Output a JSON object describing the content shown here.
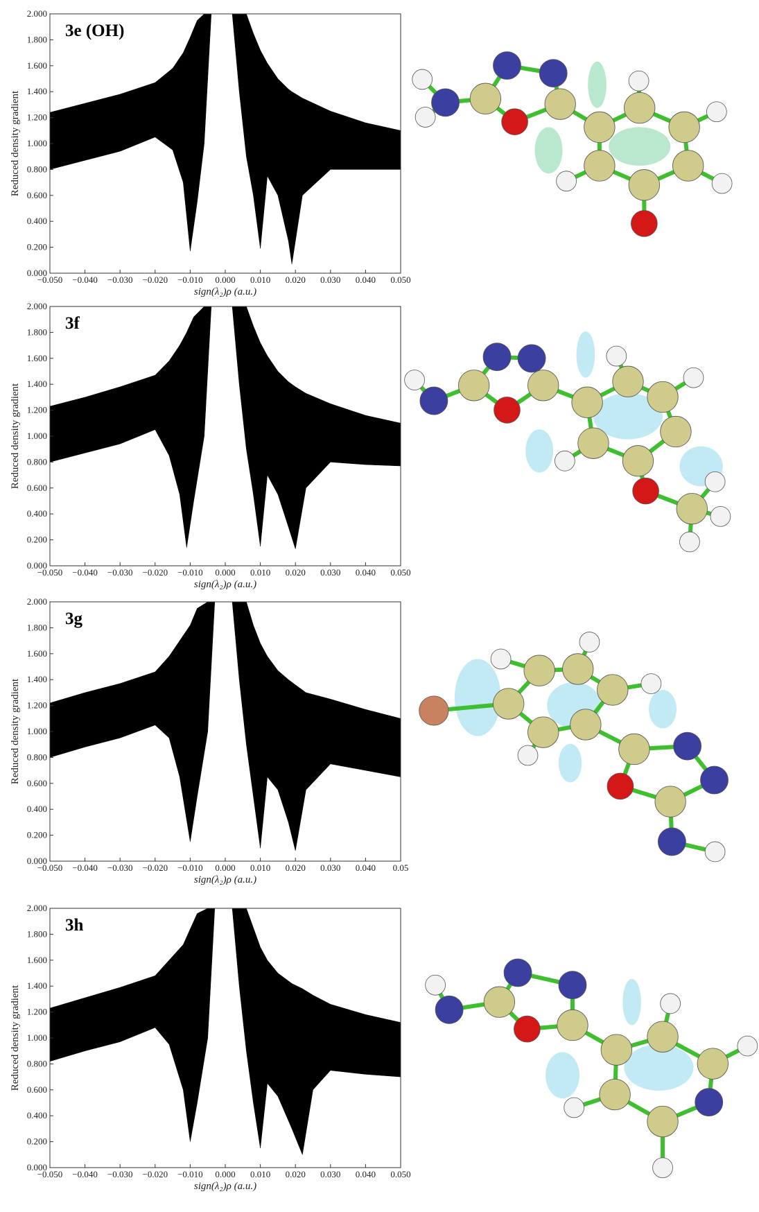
{
  "chart_data": [
    {
      "type": "area",
      "title": "3e (OH)",
      "xlabel": "sign(λ₂)ρ (a.u.)",
      "ylabel": "Reduced density gradient",
      "color": "#000000",
      "xlim": [
        -0.05,
        0.05
      ],
      "ylim": [
        0,
        2
      ],
      "xticks": [
        {
          "value": -0.05,
          "label": "−0.050"
        },
        {
          "value": -0.04,
          "label": "−0.040"
        },
        {
          "value": -0.03,
          "label": "−0.030"
        },
        {
          "value": -0.02,
          "label": "−0.020"
        },
        {
          "value": -0.01,
          "label": "−0.010"
        },
        {
          "value": 0,
          "label": "0.000"
        },
        {
          "value": 0.01,
          "label": "0.010"
        },
        {
          "value": 0.02,
          "label": "0.020"
        },
        {
          "value": 0.03,
          "label": "0.030"
        },
        {
          "value": 0.04,
          "label": "0.040"
        },
        {
          "value": 0.05,
          "label": "0.050"
        }
      ],
      "yticks": [
        {
          "value": 0,
          "label": "0.000"
        },
        {
          "value": 0.2,
          "label": "0.200"
        },
        {
          "value": 0.4,
          "label": "0.400"
        },
        {
          "value": 0.6,
          "label": "0.600"
        },
        {
          "value": 0.8,
          "label": "0.800"
        },
        {
          "value": 1,
          "label": "1.000"
        },
        {
          "value": 1.2,
          "label": "1.200"
        },
        {
          "value": 1.4,
          "label": "1.400"
        },
        {
          "value": 1.6,
          "label": "1.600"
        },
        {
          "value": 1.8,
          "label": "1.800"
        },
        {
          "value": 2,
          "label": "2.000"
        }
      ],
      "series": [
        {
          "x": [
            -0.05,
            -0.04,
            -0.03,
            -0.02,
            -0.015,
            -0.012,
            -0.01,
            -0.008,
            -0.006,
            -0.004
          ],
          "upper": [
            1.24,
            1.31,
            1.38,
            1.47,
            1.58,
            1.7,
            1.82,
            1.95,
            2,
            2
          ],
          "lower": [
            0.8,
            0.87,
            0.94,
            1.05,
            0.95,
            0.7,
            0.17,
            0.55,
            1.0,
            2
          ]
        },
        {
          "x": [
            0.002,
            0.004,
            0.006,
            0.008,
            0.01,
            0.012,
            0.015,
            0.018,
            0.019,
            0.022,
            0.03,
            0.04,
            0.05
          ],
          "upper": [
            2,
            2,
            2,
            1.85,
            1.72,
            1.62,
            1.5,
            1.42,
            1.4,
            1.35,
            1.25,
            1.16,
            1.1
          ],
          "lower": [
            2,
            1.4,
            0.9,
            0.6,
            0.19,
            0.75,
            0.6,
            0.25,
            0.07,
            0.6,
            0.8,
            0.8,
            0.8
          ]
        }
      ]
    },
    {
      "type": "area",
      "title": "3f",
      "xlabel": "sign(λ₂)ρ (a.u.)",
      "ylabel": "Reduced density gradient",
      "color": "#000000",
      "xlim": [
        -0.05,
        0.05
      ],
      "ylim": [
        0,
        2
      ],
      "xticks": [
        {
          "value": -0.05,
          "label": "−0.050"
        },
        {
          "value": -0.04,
          "label": "−0.040"
        },
        {
          "value": -0.03,
          "label": "−0.030"
        },
        {
          "value": -0.02,
          "label": "−0.020"
        },
        {
          "value": -0.01,
          "label": "−0.010"
        },
        {
          "value": 0,
          "label": "0.000"
        },
        {
          "value": 0.01,
          "label": "0.010"
        },
        {
          "value": 0.02,
          "label": "0.020"
        },
        {
          "value": 0.03,
          "label": "0.030"
        },
        {
          "value": 0.04,
          "label": "0.040"
        },
        {
          "value": 0.05,
          "label": "0.050"
        }
      ],
      "yticks": [
        {
          "value": 0,
          "label": "0.000"
        },
        {
          "value": 0.2,
          "label": "0.200"
        },
        {
          "value": 0.4,
          "label": "0.400"
        },
        {
          "value": 0.6,
          "label": "0.600"
        },
        {
          "value": 0.8,
          "label": "0.800"
        },
        {
          "value": 1,
          "label": "1.000"
        },
        {
          "value": 1.2,
          "label": "1.200"
        },
        {
          "value": 1.4,
          "label": "1.400"
        },
        {
          "value": 1.6,
          "label": "1.600"
        },
        {
          "value": 1.8,
          "label": "1.800"
        },
        {
          "value": 2,
          "label": "2.000"
        }
      ],
      "series": [
        {
          "x": [
            -0.05,
            -0.04,
            -0.03,
            -0.02,
            -0.016,
            -0.013,
            -0.011,
            -0.009,
            -0.006,
            -0.004
          ],
          "upper": [
            1.23,
            1.3,
            1.38,
            1.47,
            1.58,
            1.7,
            1.8,
            1.92,
            2,
            2
          ],
          "lower": [
            0.8,
            0.87,
            0.94,
            1.05,
            0.85,
            0.55,
            0.14,
            0.5,
            1.0,
            2
          ]
        },
        {
          "x": [
            0.002,
            0.004,
            0.006,
            0.008,
            0.01,
            0.012,
            0.015,
            0.018,
            0.02,
            0.023,
            0.03,
            0.04,
            0.05
          ],
          "upper": [
            2,
            2,
            2,
            1.85,
            1.72,
            1.62,
            1.5,
            1.42,
            1.38,
            1.33,
            1.25,
            1.16,
            1.1
          ],
          "lower": [
            2,
            1.4,
            0.9,
            0.55,
            0.15,
            0.7,
            0.55,
            0.3,
            0.13,
            0.6,
            0.8,
            0.78,
            0.77
          ]
        }
      ]
    },
    {
      "type": "area",
      "title": "3g",
      "xlabel": "sign(λ₂)ρ (a.u.)",
      "ylabel": "Reduced density gradient",
      "color": "#000000",
      "xlim": [
        -0.05,
        0.05
      ],
      "ylim": [
        0,
        2
      ],
      "xticks": [
        {
          "value": -0.05,
          "label": "−0.050"
        },
        {
          "value": -0.04,
          "label": "−0.040"
        },
        {
          "value": -0.03,
          "label": "−0.030"
        },
        {
          "value": -0.02,
          "label": "−0.020"
        },
        {
          "value": -0.01,
          "label": "−0.010"
        },
        {
          "value": 0,
          "label": "0.000"
        },
        {
          "value": 0.01,
          "label": "0.010"
        },
        {
          "value": 0.02,
          "label": "0.020"
        },
        {
          "value": 0.03,
          "label": "0.030"
        },
        {
          "value": 0.04,
          "label": "0.040"
        },
        0.05
      ],
      "yticks": [
        {
          "value": 0,
          "label": "0.000"
        },
        {
          "value": 0.2,
          "label": "0.200"
        },
        {
          "value": 0.4,
          "label": "0.400"
        },
        {
          "value": 0.6,
          "label": "0.600"
        },
        {
          "value": 0.8,
          "label": "0.800"
        },
        {
          "value": 1,
          "label": "1.000"
        },
        {
          "value": 1.2,
          "label": "1.200"
        },
        {
          "value": 1.4,
          "label": "1.400"
        },
        {
          "value": 1.6,
          "label": "1.600"
        },
        {
          "value": 1.8,
          "label": "1.800"
        },
        {
          "value": 2,
          "label": "2.000"
        }
      ],
      "series": [
        {
          "x": [
            -0.05,
            -0.04,
            -0.03,
            -0.02,
            -0.016,
            -0.013,
            -0.01,
            -0.008,
            -0.005,
            -0.003
          ],
          "upper": [
            1.22,
            1.3,
            1.37,
            1.46,
            1.58,
            1.7,
            1.82,
            1.95,
            2,
            2
          ],
          "lower": [
            0.8,
            0.88,
            0.95,
            1.05,
            0.95,
            0.65,
            0.15,
            0.5,
            1.0,
            2
          ]
        },
        {
          "x": [
            0.002,
            0.004,
            0.006,
            0.008,
            0.01,
            0.012,
            0.015,
            0.018,
            0.02,
            0.023,
            0.03,
            0.04,
            0.05
          ],
          "upper": [
            2,
            2,
            2,
            1.82,
            1.68,
            1.58,
            1.47,
            1.4,
            1.36,
            1.3,
            1.25,
            1.17,
            1.1
          ],
          "lower": [
            2,
            1.4,
            0.9,
            0.5,
            0.1,
            0.65,
            0.55,
            0.3,
            0.08,
            0.55,
            0.75,
            0.7,
            0.65
          ]
        }
      ]
    },
    {
      "type": "area",
      "title": "3h",
      "xlabel": "sign(λ₂)ρ (a.u.)",
      "ylabel": "Reduced density gradient",
      "color": "#000000",
      "xlim": [
        -0.05,
        0.05
      ],
      "ylim": [
        0,
        2
      ],
      "xticks": [
        {
          "value": -0.05,
          "label": "−0.050"
        },
        {
          "value": -0.04,
          "label": "−0.040"
        },
        {
          "value": -0.03,
          "label": "−0.030"
        },
        {
          "value": -0.02,
          "label": "−0.020"
        },
        {
          "value": -0.01,
          "label": "−0.010"
        },
        {
          "value": 0,
          "label": "0.000"
        },
        {
          "value": 0.01,
          "label": "0.010"
        },
        {
          "value": 0.02,
          "label": "0.020"
        },
        {
          "value": 0.03,
          "label": "0.030"
        },
        {
          "value": 0.04,
          "label": "0.040"
        },
        {
          "value": 0.05,
          "label": "0.050"
        }
      ],
      "yticks": [
        {
          "value": 0,
          "label": "0.000"
        },
        {
          "value": 0.2,
          "label": "0.200"
        },
        {
          "value": 0.4,
          "label": "0.400"
        },
        {
          "value": 0.6,
          "label": "0.600"
        },
        {
          "value": 0.8,
          "label": "0.800"
        },
        {
          "value": 1,
          "label": "1.000"
        },
        {
          "value": 1.2,
          "label": "1.200"
        },
        {
          "value": 1.4,
          "label": "1.400"
        },
        {
          "value": 1.6,
          "label": "1.600"
        },
        {
          "value": 1.8,
          "label": "1.800"
        },
        {
          "value": 2,
          "label": "2.000"
        }
      ],
      "series": [
        {
          "x": [
            -0.05,
            -0.04,
            -0.03,
            -0.02,
            -0.016,
            -0.012,
            -0.01,
            -0.008,
            -0.005,
            -0.003
          ],
          "upper": [
            1.23,
            1.31,
            1.39,
            1.48,
            1.6,
            1.72,
            1.84,
            1.96,
            2,
            2
          ],
          "lower": [
            0.82,
            0.9,
            0.97,
            1.08,
            0.95,
            0.6,
            0.2,
            0.5,
            1.0,
            2
          ]
        },
        {
          "x": [
            0.002,
            0.004,
            0.006,
            0.008,
            0.01,
            0.012,
            0.015,
            0.019,
            0.022,
            0.025,
            0.03,
            0.04,
            0.05
          ],
          "upper": [
            2,
            2,
            2,
            1.85,
            1.7,
            1.6,
            1.5,
            1.42,
            1.38,
            1.33,
            1.26,
            1.18,
            1.12
          ],
          "lower": [
            2,
            1.4,
            0.9,
            0.5,
            0.15,
            0.65,
            0.55,
            0.3,
            0.1,
            0.6,
            0.75,
            0.72,
            0.7
          ]
        }
      ]
    }
  ]
}
